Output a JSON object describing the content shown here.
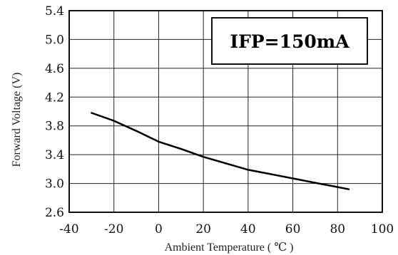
{
  "chart_data": {
    "type": "line",
    "title": "",
    "xlabel": "Ambient Temperature ( ℃ )",
    "ylabel": "Forward Voltage (V)",
    "xlim": [
      -40,
      100
    ],
    "ylim": [
      2.6,
      5.4
    ],
    "x_ticks": [
      "-40",
      "-20",
      "0",
      "20",
      "40",
      "60",
      "80",
      "100"
    ],
    "y_ticks": [
      "2.6",
      "3.0",
      "3.4",
      "3.8",
      "4.2",
      "4.6",
      "5.0",
      "5.4"
    ],
    "grid": true,
    "annotation": "IFP=150mA",
    "series": [
      {
        "x": [
          -30,
          -20,
          -10,
          0,
          10,
          20,
          30,
          40,
          50,
          60,
          70,
          80,
          85
        ],
        "y": [
          3.98,
          3.87,
          3.73,
          3.58,
          3.48,
          3.37,
          3.28,
          3.19,
          3.13,
          3.07,
          3.01,
          2.95,
          2.92
        ]
      }
    ],
    "colors": {
      "line": "#000000",
      "grid": "#222222",
      "background": "#ffffff"
    }
  }
}
